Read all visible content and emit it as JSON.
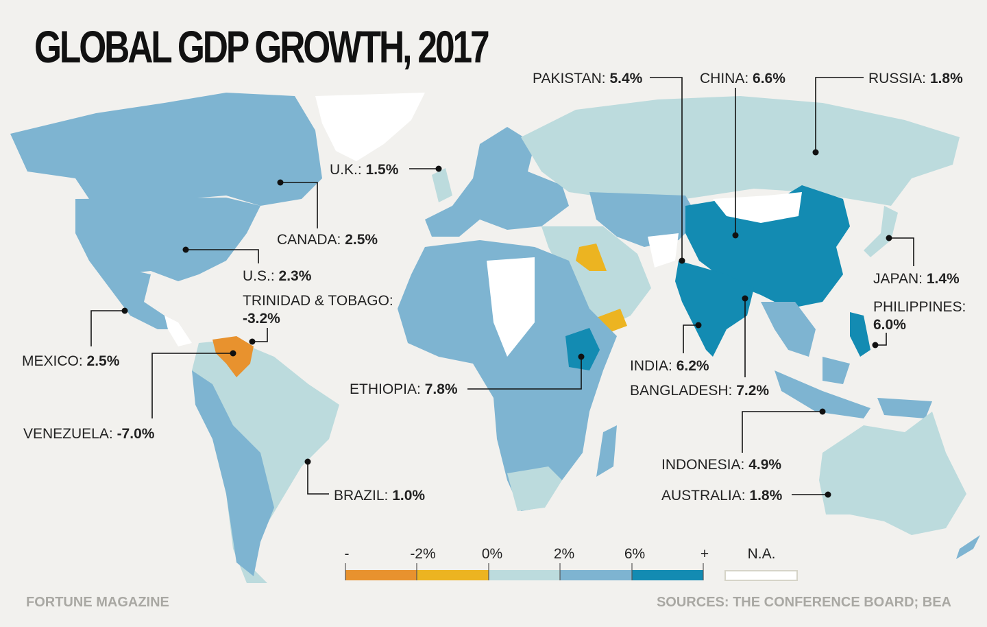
{
  "title": "GLOBAL GDP GROWTH, 2017",
  "colors": {
    "background": "#f2f1ee",
    "below_minus2": "#e8922e",
    "minus2_to_0": "#ecb421",
    "0_to_2": "#bcdbdd",
    "2_to_6": "#7eb4d1",
    "above_6": "#138bb2",
    "na": "#ffffff"
  },
  "callouts": [
    {
      "country": "PAKISTAN:",
      "value": "5.4%"
    },
    {
      "country": "CHINA:",
      "value": "6.6%"
    },
    {
      "country": "RUSSIA:",
      "value": "1.8%"
    },
    {
      "country": "U.K.:",
      "value": "1.5%"
    },
    {
      "country": "CANADA:",
      "value": "2.5%"
    },
    {
      "country": "U.S.:",
      "value": "2.3%"
    },
    {
      "country": "TRINIDAD & TOBAGO:",
      "value": "-3.2%"
    },
    {
      "country": "MEXICO:",
      "value": "2.5%"
    },
    {
      "country": "VENEZUELA:",
      "value": "-7.0%"
    },
    {
      "country": "BRAZIL:",
      "value": "1.0%"
    },
    {
      "country": "ETHIOPIA:",
      "value": "7.8%"
    },
    {
      "country": "INDIA:",
      "value": "6.2%"
    },
    {
      "country": "BANGLADESH:",
      "value": "7.2%"
    },
    {
      "country": "JAPAN:",
      "value": "1.4%"
    },
    {
      "country": "PHILIPPINES:",
      "value": "6.0%"
    },
    {
      "country": "INDONESIA:",
      "value": "4.9%"
    },
    {
      "country": "AUSTRALIA:",
      "value": "1.8%"
    }
  ],
  "legend": {
    "ticks": [
      "-",
      "-2%",
      "0%",
      "2%",
      "6%",
      "+"
    ],
    "na_label": "N.A."
  },
  "footer": {
    "left": "FORTUNE MAGAZINE",
    "right": "SOURCES: THE CONFERENCE BOARD; BEA"
  }
}
